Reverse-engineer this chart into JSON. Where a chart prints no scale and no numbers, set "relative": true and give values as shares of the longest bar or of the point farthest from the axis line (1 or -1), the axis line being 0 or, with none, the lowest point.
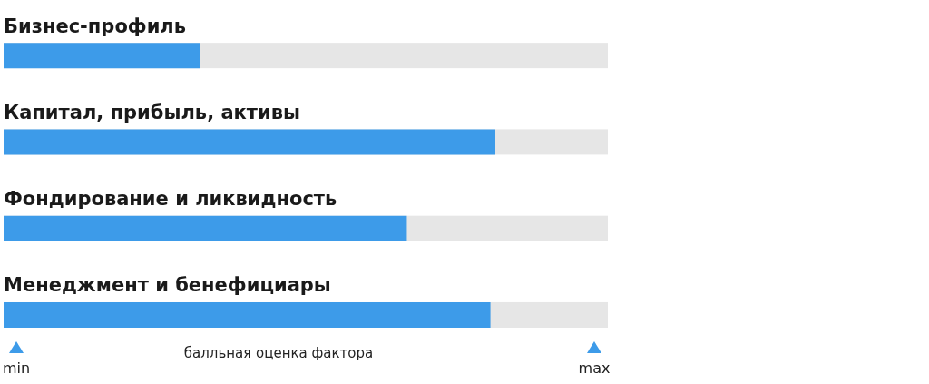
{
  "chart_data": {
    "type": "bar",
    "orientation": "horizontal",
    "relative": true,
    "categories": [
      "Бизнес-профиль",
      "Капитал, прибыль, активы",
      "Фондирование и ликвидность",
      "Менеджмент и бенефициары"
    ],
    "values": [
      0.4,
      1,
      0.82,
      0.99
    ],
    "color": "#3d9be9",
    "xlabel": "балльная оценка фактора",
    "annotations": [
      "min",
      "max"
    ]
  }
}
